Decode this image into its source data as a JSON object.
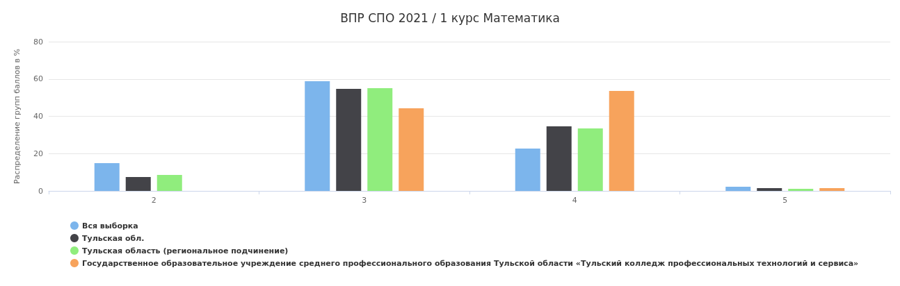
{
  "chart_data": {
    "type": "bar",
    "title": "ВПР СПО 2021 / 1 курс Математика",
    "ylabel": "Распределение групп баллов в %",
    "categories": [
      "2",
      "3",
      "4",
      "5"
    ],
    "series": [
      {
        "name": "Вся выборка",
        "color": "#7cb5ec",
        "values": [
          14.9,
          58.8,
          22.7,
          2.2
        ]
      },
      {
        "name": "Тульская обл.",
        "color": "#434348",
        "values": [
          7.4,
          54.7,
          34.6,
          1.5
        ]
      },
      {
        "name": "Тульская область (региональное подчинение)",
        "color": "#90ed7d",
        "values": [
          8.6,
          55.1,
          33.5,
          1.1
        ]
      },
      {
        "name": "Государственное образовательное учреждение среднего профессионального образования Тульской области «Тульский колледж профессиональных технологий и сервиса»",
        "color": "#f7a35c",
        "values": [
          null,
          44.3,
          53.6,
          1.5
        ]
      }
    ],
    "ylim": [
      0,
      80
    ],
    "yticks": [
      0,
      20,
      40,
      60,
      80
    ],
    "grid": "y",
    "legend": "bottom left"
  }
}
